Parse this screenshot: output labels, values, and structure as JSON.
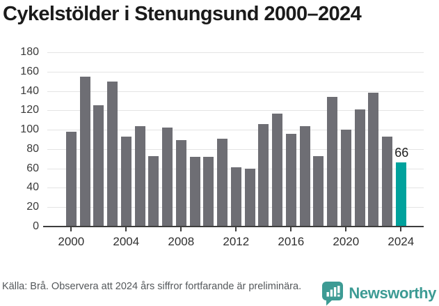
{
  "title": "Cykelstölder i Stenungsund 2000–2024",
  "chart_data": {
    "type": "bar",
    "title": "Cykelstölder i Stenungsund 2000–2024",
    "x": [
      2000,
      2001,
      2002,
      2003,
      2004,
      2005,
      2006,
      2007,
      2008,
      2009,
      2010,
      2011,
      2012,
      2013,
      2014,
      2015,
      2016,
      2017,
      2018,
      2019,
      2020,
      2021,
      2022,
      2023,
      2024
    ],
    "values": [
      98,
      155,
      125,
      150,
      93,
      104,
      73,
      102,
      89,
      72,
      72,
      91,
      61,
      60,
      106,
      117,
      96,
      104,
      73,
      134,
      100,
      121,
      138,
      93,
      66
    ],
    "ylim": [
      0,
      180
    ],
    "yticks": [
      0,
      20,
      40,
      60,
      80,
      100,
      120,
      140,
      160,
      180
    ],
    "xticks": [
      2000,
      2004,
      2008,
      2012,
      2016,
      2020,
      2024
    ],
    "xlabel": "",
    "ylabel": "",
    "grid": "horizontal",
    "legend": "none",
    "highlight_index": 24,
    "annotation": {
      "text": "66",
      "x": 2024
    },
    "colors": {
      "bar": "#6e6e74",
      "highlight": "#00a29d",
      "gridline": "#e4e4e4",
      "axis": "#3d3d3d",
      "tick_label": "#3a3a3a",
      "annotation": "#1d1d1d"
    }
  },
  "footer": {
    "source": "Källa: Brå. Observera att 2024 års siffror fortfarande är preliminära.",
    "brand": "Newsworthy",
    "brand_color": "#3d9b94"
  }
}
